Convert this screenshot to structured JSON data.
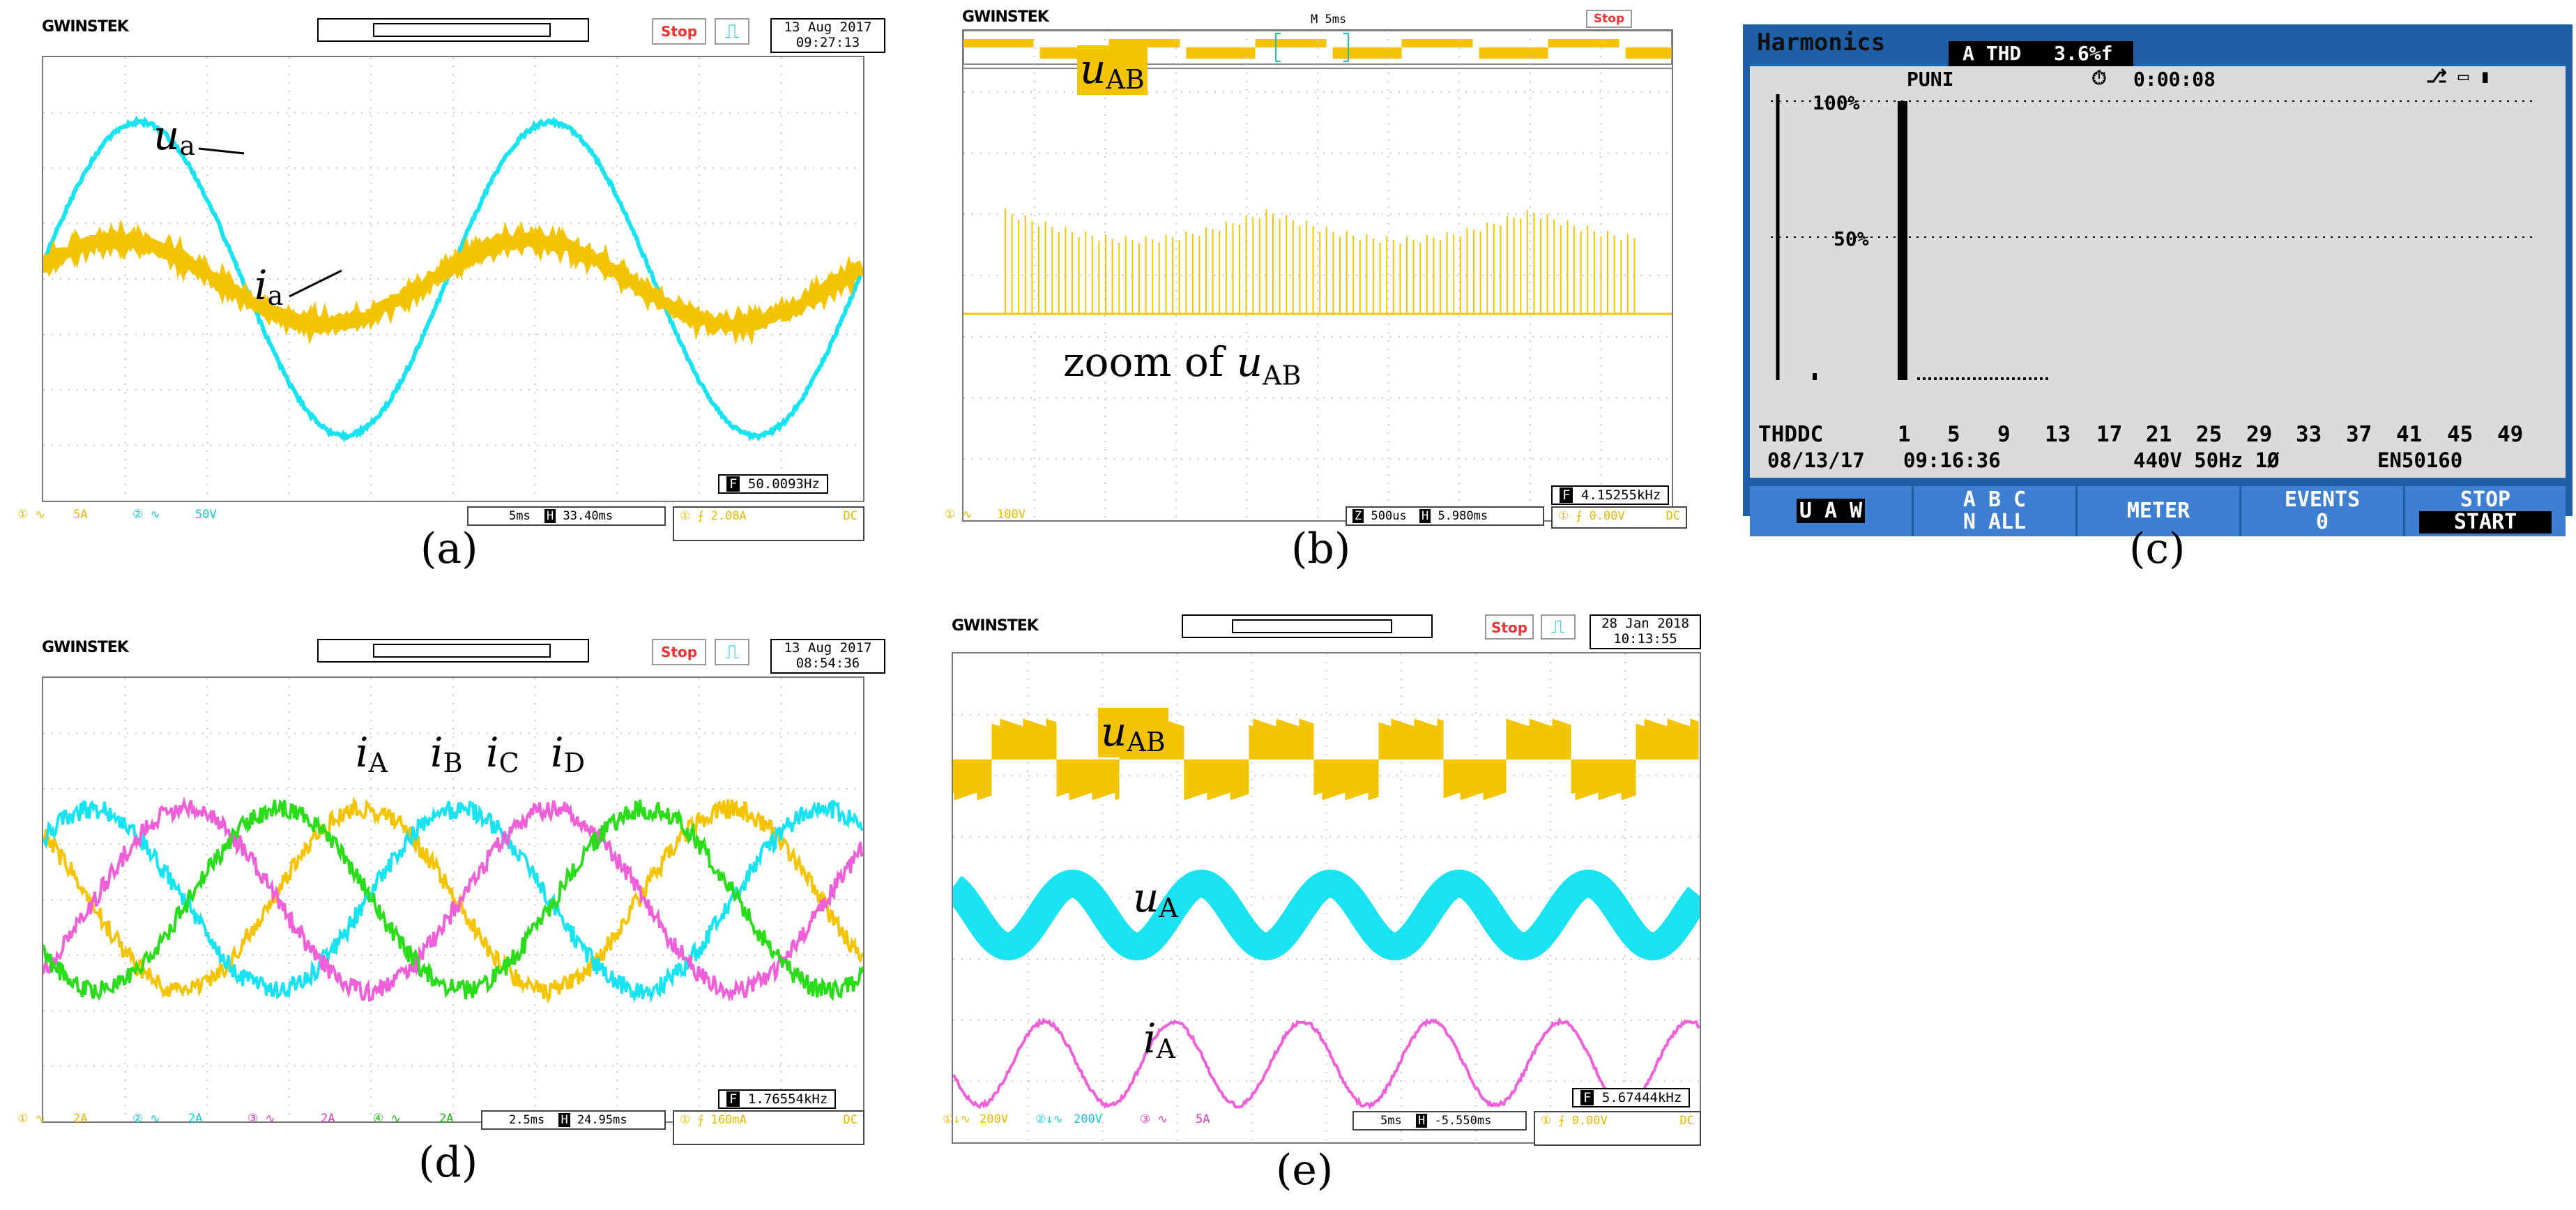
{
  "panels": {
    "a": {
      "brand": "GWINSTEK",
      "status": "Stop",
      "date": "13 Aug 2017",
      "time": "09:27:13",
      "freq_marker": "F",
      "freq": "50.0093Hz",
      "ch1": "5A",
      "ch2": "50V",
      "timebase": "5ms",
      "h_marker": "H",
      "hpos": "33.40ms",
      "trig_level": "2.08A",
      "trig_coupling": "DC",
      "label_u": "u",
      "label_u_sub": "a",
      "label_i": "i",
      "label_i_sub": "a",
      "caption": "(a)"
    },
    "b": {
      "brand": "GWINSTEK",
      "status": "Stop",
      "timebase_top": "M 5ms",
      "freq_marker": "F",
      "freq": "4.15255kHz",
      "ch1": "100V",
      "zoom_marker": "Z",
      "zoom": "500us",
      "h_marker": "H",
      "hpos": "5.980ms",
      "trig_level": "0.00V",
      "trig_coupling": "DC",
      "label_u": "u",
      "label_u_sub": "AB",
      "zoom_text": "zoom of ",
      "zoom_u": "u",
      "zoom_sub": "AB",
      "caption": "(b)"
    },
    "c": {
      "title": "Harmonics",
      "thd_label": "A THD",
      "thd_value": "3.6%f",
      "puni": "PUNI",
      "timer": "0:00:08",
      "y100": "100%",
      "y50": "50%",
      "x_ticks": [
        "THDDC",
        "1",
        "5",
        "9",
        "13",
        "17",
        "21",
        "25",
        "29",
        "33",
        "37",
        "41",
        "45",
        "49"
      ],
      "date": "08/13/17",
      "time": "09:16:36",
      "supply": "440V  50Hz 1Ø",
      "standard": "EN50160",
      "buttons": {
        "uaw": "U A W",
        "ab_top": "A  B  C",
        "ab_bottom": "N   ALL",
        "meter": "METER",
        "events": "EVENTS",
        "events_count": "0",
        "stop": "STOP",
        "start": "START"
      },
      "caption": "(c)"
    },
    "d": {
      "brand": "GWINSTEK",
      "status": "Stop",
      "date": "13 Aug 2017",
      "time": "08:54:36",
      "freq_marker": "F",
      "freq": "1.76554kHz",
      "ch1": "2A",
      "ch2": "2A",
      "ch3": "2A",
      "ch4": "2A",
      "timebase": "2.5ms",
      "h_marker": "H",
      "hpos": "24.95ms",
      "trig_level": "160mA",
      "trig_coupling": "DC",
      "labels": [
        {
          "i": "i",
          "s": "A"
        },
        {
          "i": "i",
          "s": "B"
        },
        {
          "i": "i",
          "s": "C"
        },
        {
          "i": "i",
          "s": "D"
        }
      ],
      "caption": "(d)"
    },
    "e": {
      "brand": "GWINSTEK",
      "status": "Stop",
      "date": "28 Jan 2018",
      "time": "10:13:55",
      "freq_marker": "F",
      "freq": "5.67444kHz",
      "ch1": "200V",
      "ch2": "200V",
      "ch3": "5A",
      "timebase": "5ms",
      "h_marker": "H",
      "hpos": "-5.550ms",
      "trig_level": "0.00V",
      "trig_coupling": "DC",
      "label_uab": "u",
      "label_uab_sub": "AB",
      "label_ua": "u",
      "label_ua_sub": "A",
      "label_ia": "i",
      "label_ia_sub": "A",
      "caption": "(e)"
    }
  },
  "colors": {
    "yellow": "#f5c400",
    "cyan": "#19e3f0",
    "magenta": "#ee5fd8",
    "green": "#2bdc1b",
    "grid": "#c8c8c8"
  }
}
